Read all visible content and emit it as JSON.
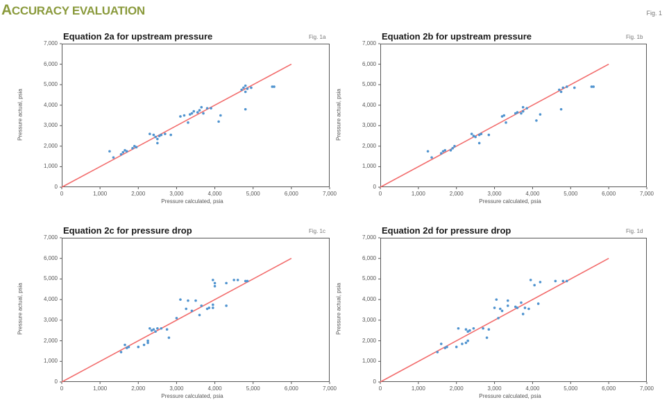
{
  "header": {
    "title_first_letter": "A",
    "title_rest": "CCURACY EVALUATION",
    "title": "Accuracy evaluation",
    "fig_label": "Fig. 1"
  },
  "colors": {
    "title": "#8a9a3c",
    "points": "#4f93cf",
    "line": "#f26b6b",
    "axis": "#555555"
  },
  "axes": {
    "xlabel": "Pressure calculated, psia",
    "ylabel": "Pressure actual, psia",
    "ticks": [
      "0",
      "1,000",
      "2,000",
      "3,000",
      "4,000",
      "5,000",
      "6,000",
      "7,000"
    ]
  },
  "panels": [
    {
      "title": "Equation 2a for upstream pressure",
      "fig": "Fig. 1a"
    },
    {
      "title": "Equation 2b for upstream pressure",
      "fig": "Fig. 1b"
    },
    {
      "title": "Equation 2c for pressure drop",
      "fig": "Fig. 1c"
    },
    {
      "title": "Equation 2d for pressure drop",
      "fig": "Fig. 1d"
    }
  ],
  "chart_data": [
    {
      "type": "scatter",
      "title": "Equation 2a for upstream pressure",
      "annotation": "Fig. 1a",
      "xlabel": "Pressure calculated, psia",
      "ylabel": "Pressure actual, psia",
      "xlim": [
        0,
        7000
      ],
      "ylim": [
        0,
        7000
      ],
      "xticks": [
        0,
        1000,
        2000,
        3000,
        4000,
        5000,
        6000,
        7000
      ],
      "yticks": [
        0,
        1000,
        2000,
        3000,
        4000,
        5000,
        6000,
        7000
      ],
      "grid": false,
      "reference_line": {
        "x": [
          0,
          6000
        ],
        "y": [
          0,
          6000
        ],
        "color": "#f26b6b"
      },
      "points": [
        [
          1250,
          1750
        ],
        [
          1350,
          1450
        ],
        [
          1550,
          1600
        ],
        [
          1600,
          1700
        ],
        [
          1650,
          1800
        ],
        [
          1700,
          1750
        ],
        [
          1850,
          1900
        ],
        [
          1900,
          2000
        ],
        [
          1950,
          1950
        ],
        [
          2300,
          2600
        ],
        [
          2400,
          2550
        ],
        [
          2450,
          2450
        ],
        [
          2500,
          2350
        ],
        [
          2500,
          2150
        ],
        [
          2550,
          2500
        ],
        [
          2600,
          2550
        ],
        [
          2700,
          2600
        ],
        [
          2850,
          2550
        ],
        [
          3100,
          3450
        ],
        [
          3200,
          3500
        ],
        [
          3300,
          3150
        ],
        [
          3350,
          3550
        ],
        [
          3400,
          3600
        ],
        [
          3450,
          3700
        ],
        [
          3550,
          3650
        ],
        [
          3600,
          3750
        ],
        [
          3650,
          3900
        ],
        [
          3700,
          3600
        ],
        [
          3800,
          3850
        ],
        [
          3900,
          3850
        ],
        [
          4100,
          3200
        ],
        [
          4150,
          3500
        ],
        [
          4700,
          4750
        ],
        [
          4750,
          4850
        ],
        [
          4800,
          4650
        ],
        [
          4800,
          4950
        ],
        [
          4850,
          4800
        ],
        [
          4800,
          3800
        ],
        [
          4950,
          4850
        ],
        [
          5500,
          4900
        ],
        [
          5550,
          4900
        ]
      ]
    },
    {
      "type": "scatter",
      "title": "Equation 2b for upstream pressure",
      "annotation": "Fig. 1b",
      "xlabel": "Pressure calculated, psia",
      "ylabel": "Pressure actual, psia",
      "xlim": [
        0,
        7000
      ],
      "ylim": [
        0,
        7000
      ],
      "xticks": [
        0,
        1000,
        2000,
        3000,
        4000,
        5000,
        6000,
        7000
      ],
      "yticks": [
        0,
        1000,
        2000,
        3000,
        4000,
        5000,
        6000,
        7000
      ],
      "grid": false,
      "reference_line": {
        "x": [
          0,
          6000
        ],
        "y": [
          0,
          6000
        ],
        "color": "#f26b6b"
      },
      "points": [
        [
          1250,
          1750
        ],
        [
          1350,
          1450
        ],
        [
          1600,
          1650
        ],
        [
          1650,
          1750
        ],
        [
          1700,
          1800
        ],
        [
          1850,
          1800
        ],
        [
          1900,
          1900
        ],
        [
          1950,
          2000
        ],
        [
          2400,
          2600
        ],
        [
          2450,
          2500
        ],
        [
          2500,
          2450
        ],
        [
          2600,
          2550
        ],
        [
          2650,
          2600
        ],
        [
          2600,
          2150
        ],
        [
          2850,
          2550
        ],
        [
          3200,
          3450
        ],
        [
          3250,
          3500
        ],
        [
          3300,
          3150
        ],
        [
          3550,
          3600
        ],
        [
          3600,
          3650
        ],
        [
          3700,
          3600
        ],
        [
          3750,
          3900
        ],
        [
          3750,
          3700
        ],
        [
          3850,
          3850
        ],
        [
          4100,
          3250
        ],
        [
          4200,
          3550
        ],
        [
          4700,
          4750
        ],
        [
          4750,
          4650
        ],
        [
          4800,
          4850
        ],
        [
          4900,
          4900
        ],
        [
          5100,
          4850
        ],
        [
          4750,
          3800
        ],
        [
          5550,
          4900
        ],
        [
          5600,
          4900
        ]
      ]
    },
    {
      "type": "scatter",
      "title": "Equation 2c for pressure drop",
      "annotation": "Fig. 1c",
      "xlabel": "Pressure calculated, psia",
      "ylabel": "Pressure actual, psia",
      "xlim": [
        0,
        7000
      ],
      "ylim": [
        0,
        7000
      ],
      "xticks": [
        0,
        1000,
        2000,
        3000,
        4000,
        5000,
        6000,
        7000
      ],
      "yticks": [
        0,
        1000,
        2000,
        3000,
        4000,
        5000,
        6000,
        7000
      ],
      "grid": false,
      "reference_line": {
        "x": [
          0,
          6000
        ],
        "y": [
          0,
          6000
        ],
        "color": "#f26b6b"
      },
      "points": [
        [
          1550,
          1450
        ],
        [
          1650,
          1800
        ],
        [
          1700,
          1650
        ],
        [
          1750,
          1700
        ],
        [
          2000,
          1700
        ],
        [
          2150,
          1800
        ],
        [
          2250,
          1900
        ],
        [
          2250,
          2000
        ],
        [
          2300,
          2600
        ],
        [
          2350,
          2500
        ],
        [
          2400,
          2550
        ],
        [
          2450,
          2450
        ],
        [
          2500,
          2600
        ],
        [
          2600,
          2600
        ],
        [
          2750,
          2550
        ],
        [
          2800,
          2150
        ],
        [
          3000,
          3100
        ],
        [
          3100,
          4000
        ],
        [
          3250,
          3550
        ],
        [
          3300,
          3950
        ],
        [
          3400,
          3450
        ],
        [
          3500,
          3950
        ],
        [
          3600,
          3250
        ],
        [
          3650,
          3700
        ],
        [
          3800,
          3550
        ],
        [
          3850,
          3600
        ],
        [
          3950,
          3600
        ],
        [
          3950,
          3750
        ],
        [
          3950,
          4950
        ],
        [
          4000,
          4800
        ],
        [
          4000,
          4650
        ],
        [
          4300,
          3700
        ],
        [
          4300,
          4800
        ],
        [
          4500,
          4950
        ],
        [
          4600,
          4950
        ],
        [
          4800,
          4900
        ],
        [
          4850,
          4900
        ]
      ]
    },
    {
      "type": "scatter",
      "title": "Equation 2d for pressure drop",
      "annotation": "Fig. 1d",
      "xlabel": "Pressure calculated, psia",
      "ylabel": "Pressure actual, psia",
      "xlim": [
        0,
        7000
      ],
      "ylim": [
        0,
        7000
      ],
      "xticks": [
        0,
        1000,
        2000,
        3000,
        4000,
        5000,
        6000,
        7000
      ],
      "yticks": [
        0,
        1000,
        2000,
        3000,
        4000,
        5000,
        6000,
        7000
      ],
      "grid": false,
      "reference_line": {
        "x": [
          0,
          6000
        ],
        "y": [
          0,
          6000
        ],
        "color": "#f26b6b"
      },
      "points": [
        [
          1500,
          1450
        ],
        [
          1600,
          1850
        ],
        [
          1700,
          1650
        ],
        [
          1750,
          1700
        ],
        [
          2000,
          1700
        ],
        [
          2150,
          1850
        ],
        [
          2250,
          1900
        ],
        [
          2300,
          2000
        ],
        [
          2050,
          2600
        ],
        [
          2250,
          2550
        ],
        [
          2300,
          2450
        ],
        [
          2350,
          2500
        ],
        [
          2450,
          2600
        ],
        [
          2700,
          2600
        ],
        [
          2800,
          2150
        ],
        [
          2850,
          2550
        ],
        [
          3000,
          3600
        ],
        [
          3050,
          4000
        ],
        [
          3100,
          3100
        ],
        [
          3150,
          3550
        ],
        [
          3200,
          3450
        ],
        [
          3350,
          3950
        ],
        [
          3350,
          3700
        ],
        [
          3550,
          3650
        ],
        [
          3600,
          3600
        ],
        [
          3700,
          3850
        ],
        [
          3750,
          3300
        ],
        [
          3800,
          3600
        ],
        [
          3900,
          3550
        ],
        [
          3950,
          4950
        ],
        [
          4050,
          4700
        ],
        [
          4150,
          3800
        ],
        [
          4200,
          4850
        ],
        [
          4600,
          4900
        ],
        [
          4800,
          4900
        ],
        [
          4900,
          4900
        ]
      ]
    }
  ]
}
